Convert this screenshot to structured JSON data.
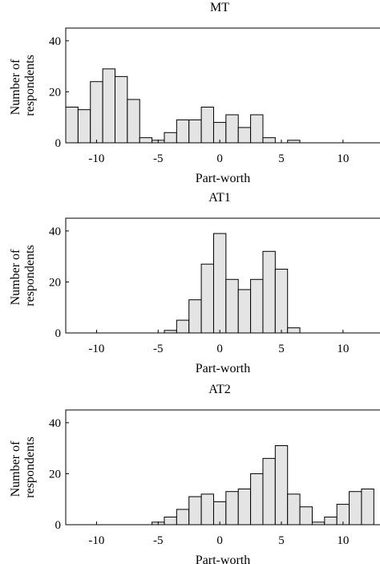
{
  "chart_data": [
    {
      "type": "bar",
      "title": "MT",
      "xlabel": "Part-worth",
      "ylabel": [
        "Number of",
        "respondents"
      ],
      "xlim": [
        -12.5,
        13
      ],
      "ylim": [
        0,
        45
      ],
      "xticks": [
        -10,
        -5,
        0,
        5,
        10
      ],
      "yticks": [
        0,
        20,
        40
      ],
      "bin_width": 1,
      "x": [
        -12,
        -11,
        -10,
        -9,
        -8,
        -7,
        -6,
        -5,
        -4,
        -3,
        -2,
        -1,
        0,
        1,
        2,
        3,
        4,
        5,
        6,
        7,
        8,
        9,
        10,
        11,
        12
      ],
      "values": [
        14,
        13,
        24,
        29,
        26,
        17,
        2,
        1,
        4,
        9,
        9,
        14,
        8,
        11,
        6,
        11,
        2,
        0,
        1,
        0,
        0,
        0,
        0,
        0,
        0
      ]
    },
    {
      "type": "bar",
      "title": "AT1",
      "xlabel": "Part-worth",
      "ylabel": [
        "Number of",
        "respondents"
      ],
      "xlim": [
        -12.5,
        13
      ],
      "ylim": [
        0,
        45
      ],
      "xticks": [
        -10,
        -5,
        0,
        5,
        10
      ],
      "yticks": [
        0,
        20,
        40
      ],
      "bin_width": 1,
      "x": [
        -12,
        -11,
        -10,
        -9,
        -8,
        -7,
        -6,
        -5,
        -4,
        -3,
        -2,
        -1,
        0,
        1,
        2,
        3,
        4,
        5,
        6,
        7,
        8,
        9,
        10,
        11,
        12
      ],
      "values": [
        0,
        0,
        0,
        0,
        0,
        0,
        0,
        0,
        1,
        5,
        13,
        27,
        39,
        21,
        17,
        21,
        32,
        25,
        2,
        0,
        0,
        0,
        0,
        0,
        0
      ]
    },
    {
      "type": "bar",
      "title": "AT2",
      "xlabel": "Part-worth",
      "ylabel": [
        "Number of",
        "respondents"
      ],
      "xlim": [
        -12.5,
        13
      ],
      "ylim": [
        0,
        45
      ],
      "xticks": [
        -10,
        -5,
        0,
        5,
        10
      ],
      "yticks": [
        0,
        20,
        40
      ],
      "bin_width": 1,
      "x": [
        -12,
        -11,
        -10,
        -9,
        -8,
        -7,
        -6,
        -5,
        -4,
        -3,
        -2,
        -1,
        0,
        1,
        2,
        3,
        4,
        5,
        6,
        7,
        8,
        9,
        10,
        11,
        12
      ],
      "values": [
        0,
        0,
        0,
        0,
        0,
        0,
        0,
        1,
        3,
        6,
        11,
        12,
        9,
        13,
        14,
        20,
        26,
        31,
        12,
        7,
        1,
        3,
        8,
        13,
        14
      ]
    }
  ]
}
